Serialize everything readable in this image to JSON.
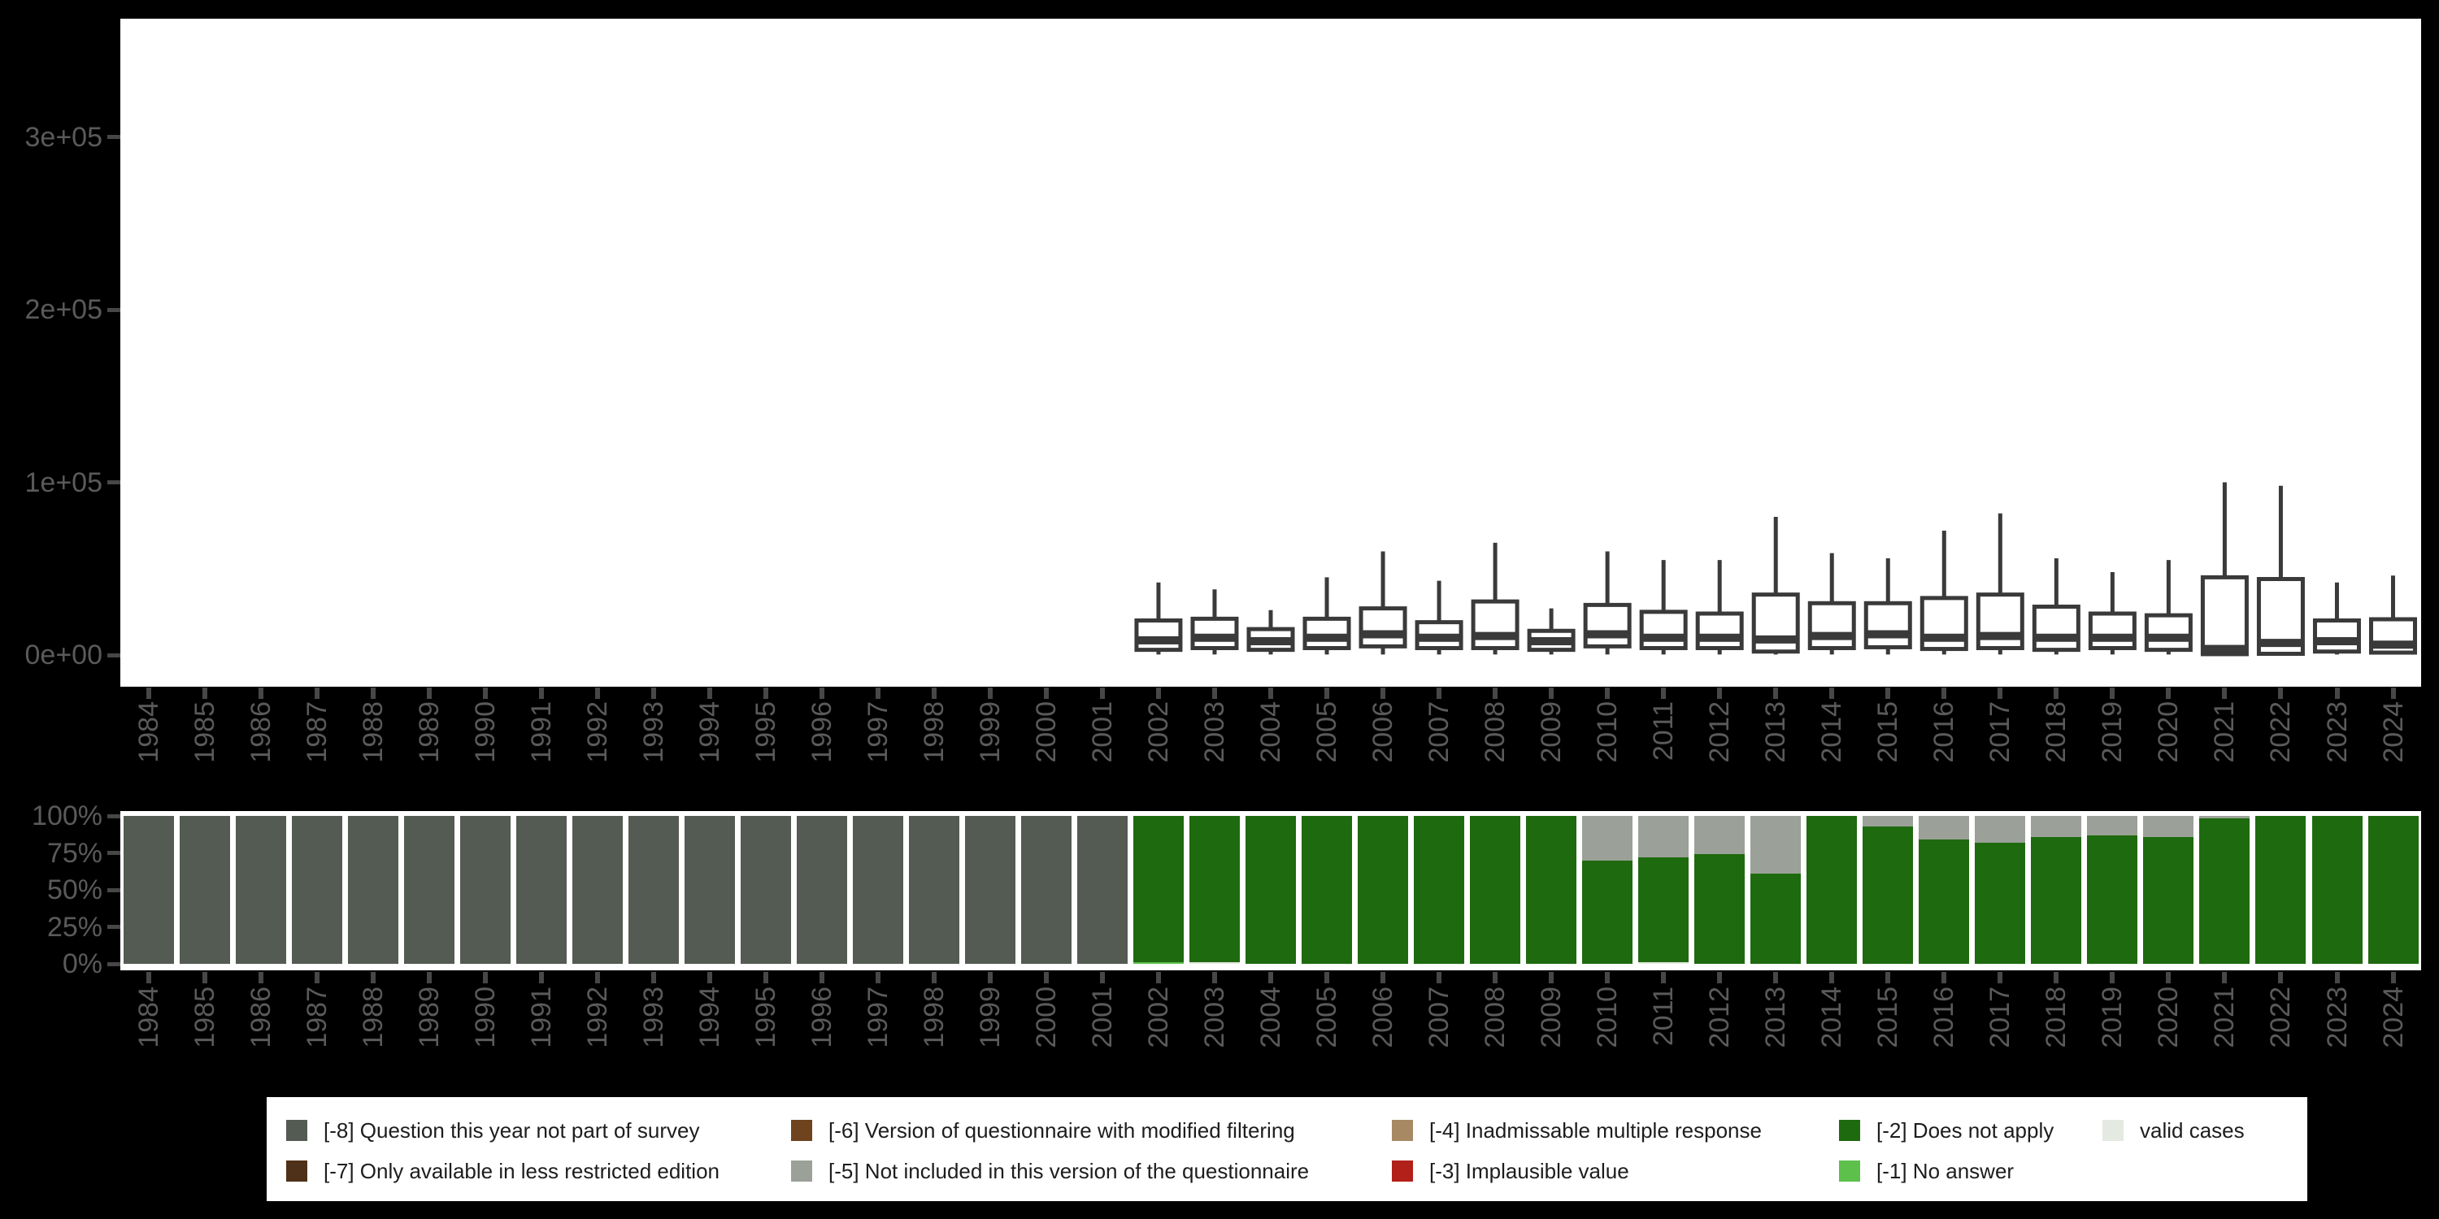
{
  "figure": {
    "background": "#000000",
    "panel_background": "#ffffff",
    "axis_text_color": "#5a5a5a",
    "tick_color": "#474747"
  },
  "years": [
    "1984",
    "1985",
    "1986",
    "1987",
    "1988",
    "1989",
    "1990",
    "1991",
    "1992",
    "1993",
    "1994",
    "1995",
    "1996",
    "1997",
    "1998",
    "1999",
    "2000",
    "2001",
    "2002",
    "2003",
    "2004",
    "2005",
    "2006",
    "2007",
    "2008",
    "2009",
    "2010",
    "2011",
    "2012",
    "2013",
    "2014",
    "2015",
    "2016",
    "2017",
    "2018",
    "2019",
    "2020",
    "2021",
    "2022",
    "2023",
    "2024"
  ],
  "chart_data": [
    {
      "type": "boxplot",
      "title": "",
      "xlabel": "",
      "ylabel": "",
      "ylim": [
        0,
        350000
      ],
      "y_ticks": [
        {
          "label": "3e+05",
          "value": 300000
        },
        {
          "label": "2e+05",
          "value": 200000
        },
        {
          "label": "1e+05",
          "value": 100000
        },
        {
          "label": "0e+00",
          "value": 0
        }
      ],
      "box_color": "#3a3a3a",
      "box_fill": "#ffffff",
      "boxplots": [
        {
          "year": "2002",
          "low": 300,
          "q1": 3000,
          "median": 8500,
          "q3": 20000,
          "high": 42000
        },
        {
          "year": "2003",
          "low": 300,
          "q1": 4000,
          "median": 10000,
          "q3": 21000,
          "high": 38000
        },
        {
          "year": "2004",
          "low": 300,
          "q1": 3000,
          "median": 8000,
          "q3": 15000,
          "high": 26000
        },
        {
          "year": "2005",
          "low": 300,
          "q1": 4000,
          "median": 10000,
          "q3": 21000,
          "high": 45000
        },
        {
          "year": "2006",
          "low": 300,
          "q1": 5000,
          "median": 12000,
          "q3": 27000,
          "high": 60000
        },
        {
          "year": "2007",
          "low": 300,
          "q1": 4000,
          "median": 10000,
          "q3": 19000,
          "high": 43000
        },
        {
          "year": "2008",
          "low": 300,
          "q1": 4000,
          "median": 11000,
          "q3": 31000,
          "high": 65000
        },
        {
          "year": "2009",
          "low": 300,
          "q1": 3000,
          "median": 8000,
          "q3": 14000,
          "high": 27000
        },
        {
          "year": "2010",
          "low": 300,
          "q1": 5000,
          "median": 12000,
          "q3": 29000,
          "high": 60000
        },
        {
          "year": "2011",
          "low": 300,
          "q1": 4000,
          "median": 10000,
          "q3": 25000,
          "high": 55000
        },
        {
          "year": "2012",
          "low": 300,
          "q1": 4000,
          "median": 10000,
          "q3": 24000,
          "high": 55000
        },
        {
          "year": "2013",
          "low": 300,
          "q1": 2000,
          "median": 9000,
          "q3": 35000,
          "high": 80000
        },
        {
          "year": "2014",
          "low": 300,
          "q1": 4000,
          "median": 11000,
          "q3": 30000,
          "high": 59000
        },
        {
          "year": "2015",
          "low": 300,
          "q1": 4500,
          "median": 12000,
          "q3": 30000,
          "high": 56000
        },
        {
          "year": "2016",
          "low": 300,
          "q1": 3500,
          "median": 10000,
          "q3": 33000,
          "high": 72000
        },
        {
          "year": "2017",
          "low": 300,
          "q1": 4000,
          "median": 11000,
          "q3": 35000,
          "high": 82000
        },
        {
          "year": "2018",
          "low": 300,
          "q1": 3000,
          "median": 10000,
          "q3": 28000,
          "high": 56000
        },
        {
          "year": "2019",
          "low": 300,
          "q1": 4000,
          "median": 10000,
          "q3": 24000,
          "high": 48000
        },
        {
          "year": "2020",
          "low": 300,
          "q1": 3000,
          "median": 10000,
          "q3": 23000,
          "high": 55000
        },
        {
          "year": "2021",
          "low": 200,
          "q1": 500,
          "median": 3500,
          "q3": 45000,
          "high": 100000
        },
        {
          "year": "2022",
          "low": 300,
          "q1": 700,
          "median": 7000,
          "q3": 44000,
          "high": 98000
        },
        {
          "year": "2023",
          "low": 300,
          "q1": 2000,
          "median": 8000,
          "q3": 20000,
          "high": 42000
        },
        {
          "year": "2024",
          "low": 300,
          "q1": 1400,
          "median": 6000,
          "q3": 20700,
          "high": 46000
        }
      ]
    },
    {
      "type": "bar",
      "subtype": "stacked-percent",
      "title": "",
      "xlabel": "",
      "ylabel": "",
      "ylim": [
        0,
        100
      ],
      "y_ticks": [
        {
          "label": "100%",
          "value": 100
        },
        {
          "label": "75%",
          "value": 75
        },
        {
          "label": "50%",
          "value": 50
        },
        {
          "label": "25%",
          "value": 25
        },
        {
          "label": "0%",
          "value": 0
        }
      ],
      "bars": [
        {
          "year": "1984",
          "segments": [
            {
              "code": "-8",
              "pct": 100
            }
          ]
        },
        {
          "year": "1985",
          "segments": [
            {
              "code": "-8",
              "pct": 100
            }
          ]
        },
        {
          "year": "1986",
          "segments": [
            {
              "code": "-8",
              "pct": 100
            }
          ]
        },
        {
          "year": "1987",
          "segments": [
            {
              "code": "-8",
              "pct": 100
            }
          ]
        },
        {
          "year": "1988",
          "segments": [
            {
              "code": "-8",
              "pct": 100
            }
          ]
        },
        {
          "year": "1989",
          "segments": [
            {
              "code": "-8",
              "pct": 100
            }
          ]
        },
        {
          "year": "1990",
          "segments": [
            {
              "code": "-8",
              "pct": 100
            }
          ]
        },
        {
          "year": "1991",
          "segments": [
            {
              "code": "-8",
              "pct": 100
            }
          ]
        },
        {
          "year": "1992",
          "segments": [
            {
              "code": "-8",
              "pct": 100
            }
          ]
        },
        {
          "year": "1993",
          "segments": [
            {
              "code": "-8",
              "pct": 100
            }
          ]
        },
        {
          "year": "1994",
          "segments": [
            {
              "code": "-8",
              "pct": 100
            }
          ]
        },
        {
          "year": "1995",
          "segments": [
            {
              "code": "-8",
              "pct": 100
            }
          ]
        },
        {
          "year": "1996",
          "segments": [
            {
              "code": "-8",
              "pct": 100
            }
          ]
        },
        {
          "year": "1997",
          "segments": [
            {
              "code": "-8",
              "pct": 100
            }
          ]
        },
        {
          "year": "1998",
          "segments": [
            {
              "code": "-8",
              "pct": 100
            }
          ]
        },
        {
          "year": "1999",
          "segments": [
            {
              "code": "-8",
              "pct": 100
            }
          ]
        },
        {
          "year": "2000",
          "segments": [
            {
              "code": "-8",
              "pct": 100
            }
          ]
        },
        {
          "year": "2001",
          "segments": [
            {
              "code": "-8",
              "pct": 100
            }
          ]
        },
        {
          "year": "2002",
          "segments": [
            {
              "code": "-1",
              "pct": 1.3
            },
            {
              "code": "-2",
              "pct": 98.7
            }
          ]
        },
        {
          "year": "2003",
          "segments": [
            {
              "code": "valid",
              "pct": 1.0
            },
            {
              "code": "-2",
              "pct": 99.0
            }
          ]
        },
        {
          "year": "2004",
          "segments": [
            {
              "code": "-2",
              "pct": 100
            }
          ]
        },
        {
          "year": "2005",
          "segments": [
            {
              "code": "-2",
              "pct": 100
            }
          ]
        },
        {
          "year": "2006",
          "segments": [
            {
              "code": "-2",
              "pct": 100
            }
          ]
        },
        {
          "year": "2007",
          "segments": [
            {
              "code": "-2",
              "pct": 100
            }
          ]
        },
        {
          "year": "2008",
          "segments": [
            {
              "code": "-2",
              "pct": 100
            }
          ]
        },
        {
          "year": "2009",
          "segments": [
            {
              "code": "-2",
              "pct": 100
            }
          ]
        },
        {
          "year": "2010",
          "segments": [
            {
              "code": "-2",
              "pct": 70
            },
            {
              "code": "-5",
              "pct": 30
            }
          ]
        },
        {
          "year": "2011",
          "segments": [
            {
              "code": "valid",
              "pct": 1.0
            },
            {
              "code": "-2",
              "pct": 71
            },
            {
              "code": "-5",
              "pct": 28
            }
          ]
        },
        {
          "year": "2012",
          "segments": [
            {
              "code": "-2",
              "pct": 74
            },
            {
              "code": "-5",
              "pct": 26
            }
          ]
        },
        {
          "year": "2013",
          "segments": [
            {
              "code": "-2",
              "pct": 61
            },
            {
              "code": "-5",
              "pct": 39
            }
          ]
        },
        {
          "year": "2014",
          "segments": [
            {
              "code": "-2",
              "pct": 100
            }
          ]
        },
        {
          "year": "2015",
          "segments": [
            {
              "code": "-2",
              "pct": 93
            },
            {
              "code": "-5",
              "pct": 7
            }
          ]
        },
        {
          "year": "2016",
          "segments": [
            {
              "code": "-2",
              "pct": 84
            },
            {
              "code": "-5",
              "pct": 16
            }
          ]
        },
        {
          "year": "2017",
          "segments": [
            {
              "code": "-2",
              "pct": 82
            },
            {
              "code": "-5",
              "pct": 18
            }
          ]
        },
        {
          "year": "2018",
          "segments": [
            {
              "code": "-2",
              "pct": 86
            },
            {
              "code": "-5",
              "pct": 14
            }
          ]
        },
        {
          "year": "2019",
          "segments": [
            {
              "code": "-2",
              "pct": 87
            },
            {
              "code": "-5",
              "pct": 13
            }
          ]
        },
        {
          "year": "2020",
          "segments": [
            {
              "code": "-2",
              "pct": 86
            },
            {
              "code": "-5",
              "pct": 14
            }
          ]
        },
        {
          "year": "2021",
          "segments": [
            {
              "code": "-2",
              "pct": 98.5
            },
            {
              "code": "-5",
              "pct": 1.5
            }
          ]
        },
        {
          "year": "2022",
          "segments": [
            {
              "code": "-2",
              "pct": 100
            }
          ]
        },
        {
          "year": "2023",
          "segments": [
            {
              "code": "-2",
              "pct": 100
            }
          ]
        },
        {
          "year": "2024",
          "segments": [
            {
              "code": "-2",
              "pct": 100
            }
          ]
        }
      ]
    }
  ],
  "segment_colors": {
    "-8": "#545b52",
    "-7": "#4e3118",
    "-6": "#6e431e",
    "-5": "#9ba198",
    "-4": "#a78a63",
    "-3": "#b2201a",
    "-2": "#1e6a0e",
    "-1": "#5cc04b",
    "valid": "#e4e9e1"
  },
  "legend": {
    "items": [
      {
        "code": "-8",
        "label": "[-8] Question this year not part of survey",
        "col": 0,
        "row": 0
      },
      {
        "code": "-7",
        "label": "[-7] Only available in less restricted edition",
        "col": 0,
        "row": 1
      },
      {
        "code": "-6",
        "label": "[-6] Version of questionnaire with modified filtering",
        "col": 1,
        "row": 0
      },
      {
        "code": "-5",
        "label": "[-5] Not included in this version of the questionnaire",
        "col": 1,
        "row": 1
      },
      {
        "code": "-4",
        "label": "[-4] Inadmissable multiple response",
        "col": 2,
        "row": 0
      },
      {
        "code": "-3",
        "label": "[-3] Implausible value",
        "col": 2,
        "row": 1
      },
      {
        "code": "-2",
        "label": "[-2] Does not apply",
        "col": 3,
        "row": 0
      },
      {
        "code": "-1",
        "label": "[-1] No answer",
        "col": 3,
        "row": 1
      },
      {
        "code": "valid",
        "label": "valid cases",
        "col": 4,
        "row": 0
      }
    ]
  }
}
